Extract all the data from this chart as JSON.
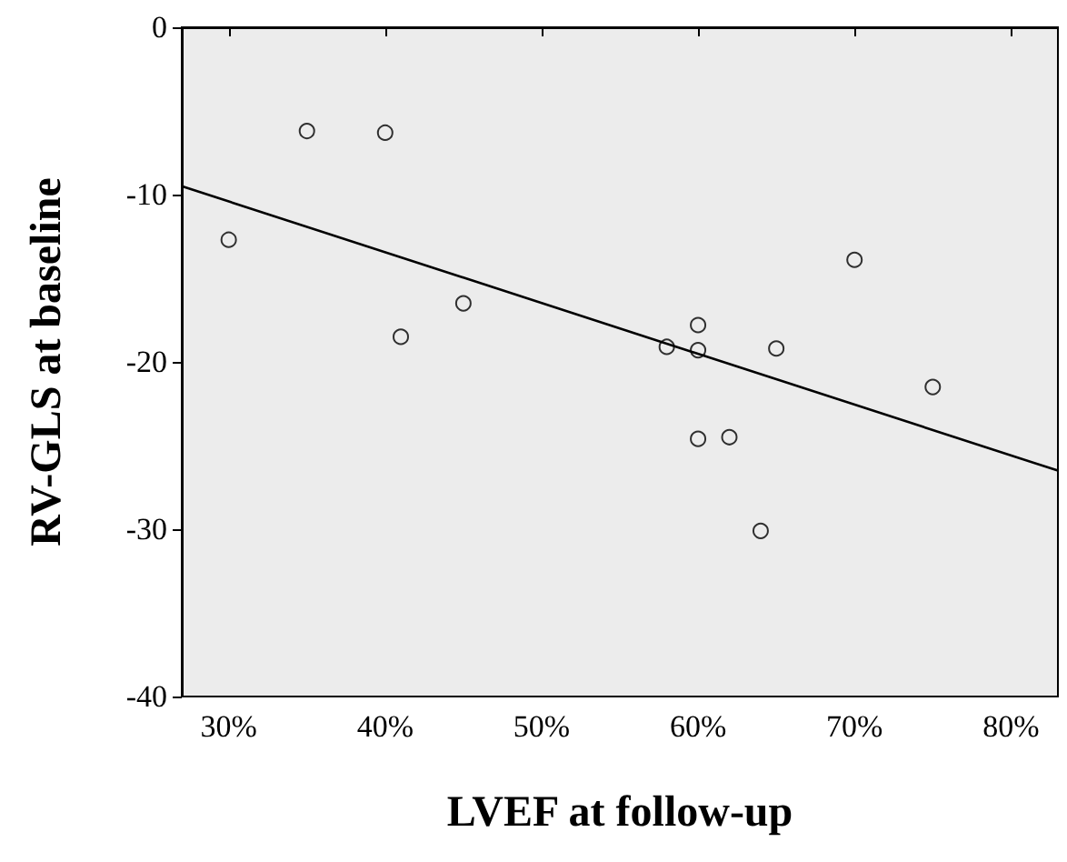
{
  "chart_data": {
    "type": "scatter",
    "xlabel": "LVEF at follow-up",
    "ylabel": "RV-GLS at baseline",
    "xlim": [
      27,
      83
    ],
    "ylim": [
      -40,
      0
    ],
    "xticks": [
      {
        "value": 30,
        "label": "30%"
      },
      {
        "value": 40,
        "label": "40%"
      },
      {
        "value": 50,
        "label": "50%"
      },
      {
        "value": 60,
        "label": "60%"
      },
      {
        "value": 70,
        "label": "70%"
      },
      {
        "value": 80,
        "label": "80%"
      }
    ],
    "yticks": [
      -40,
      -30,
      -20,
      -10,
      0
    ],
    "grid": false,
    "series": [
      {
        "marker": "circle",
        "color": "#000000",
        "x": [
          30,
          35,
          40,
          41,
          45,
          58,
          60,
          60,
          60,
          62,
          64,
          65,
          70,
          75
        ],
        "values": [
          -12.7,
          -6.2,
          -6.3,
          -18.5,
          -16.5,
          -19.1,
          -17.8,
          -19.3,
          -24.6,
          -24.5,
          -30.1,
          -19.2,
          -13.9,
          -21.5
        ]
      },
      {
        "type": "line",
        "color": "#000000",
        "x": [
          27,
          83
        ],
        "values": [
          -9.5,
          -26.5
        ]
      }
    ]
  }
}
